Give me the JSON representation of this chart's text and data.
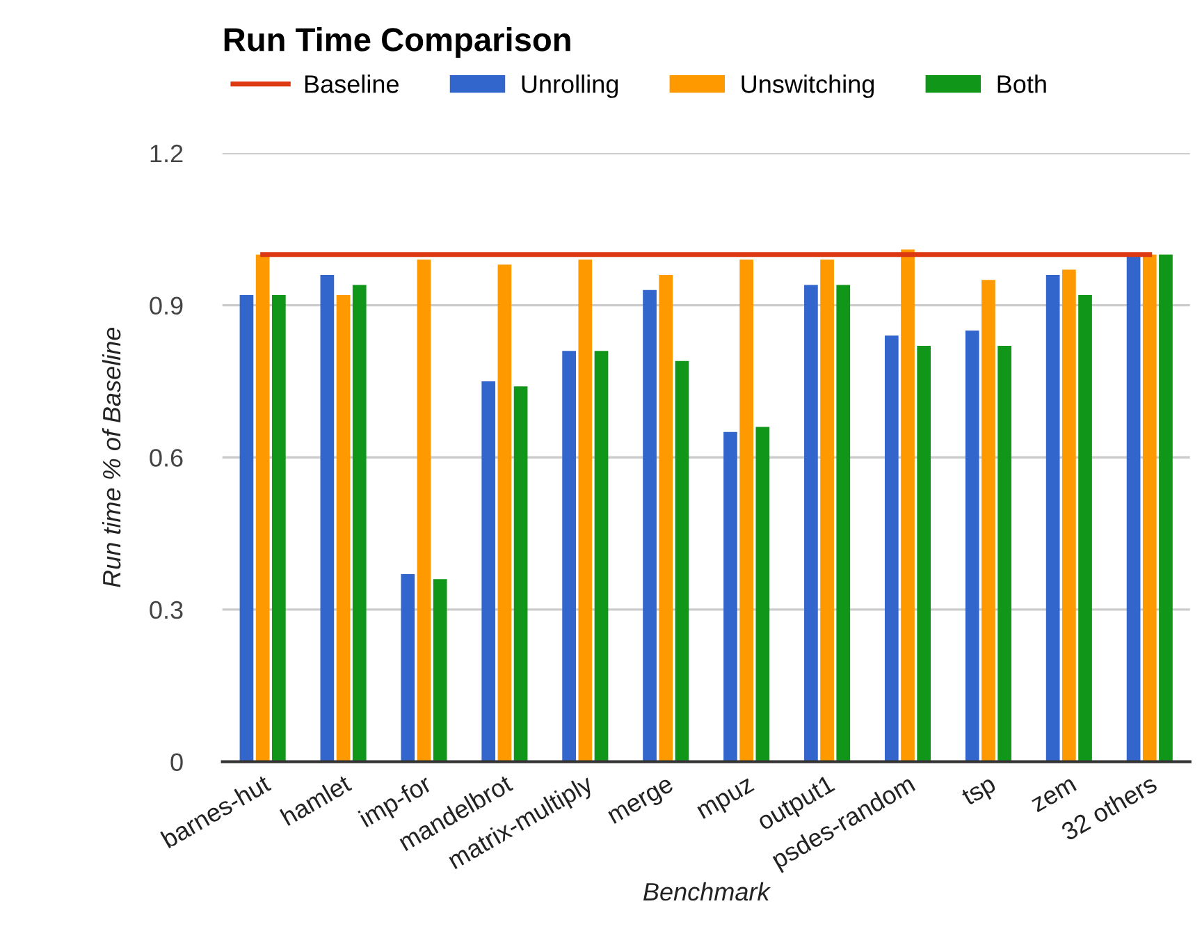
{
  "chart_data": {
    "type": "bar",
    "title": "Run Time Comparison",
    "xlabel": "Benchmark",
    "ylabel": "Run time % of Baseline",
    "categories": [
      "barnes-hut",
      "hamlet",
      "imp-for",
      "mandelbrot",
      "matrix-multiply",
      "merge",
      "mpuz",
      "output1",
      "psdes-random",
      "tsp",
      "zem",
      "32 others"
    ],
    "series": [
      {
        "name": "Baseline",
        "type": "line",
        "color": "#dc3912",
        "values": [
          1.0,
          1.0,
          1.0,
          1.0,
          1.0,
          1.0,
          1.0,
          1.0,
          1.0,
          1.0,
          1.0,
          1.0
        ]
      },
      {
        "name": "Unrolling",
        "color": "#3366cc",
        "values": [
          0.92,
          0.96,
          0.37,
          0.75,
          0.81,
          0.93,
          0.65,
          0.94,
          0.84,
          0.85,
          0.96,
          1.0
        ]
      },
      {
        "name": "Unswitching",
        "color": "#ff9900",
        "values": [
          1.0,
          0.92,
          0.99,
          0.98,
          0.99,
          0.96,
          0.99,
          0.99,
          1.01,
          0.95,
          0.97,
          1.0
        ]
      },
      {
        "name": "Both",
        "color": "#109618",
        "values": [
          0.92,
          0.94,
          0.36,
          0.74,
          0.81,
          0.79,
          0.66,
          0.94,
          0.82,
          0.82,
          0.92,
          1.0
        ]
      }
    ],
    "ylim": [
      0,
      1.2
    ],
    "yticks": [
      0,
      0.3,
      0.6,
      0.9,
      1.2
    ],
    "grid": "y",
    "legend": "top"
  }
}
